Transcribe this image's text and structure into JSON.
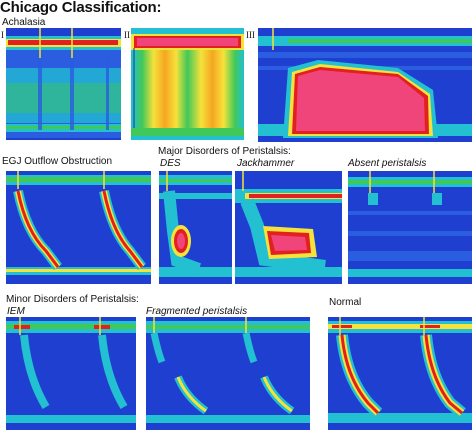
{
  "title": "Chicago Classification:",
  "sections": {
    "achalasia": "Achalasia",
    "egj": "EGJ Outflow Obstruction",
    "major": "Major Disorders of Peristalsis:",
    "minor": "Minor Disorders of Peristalsis:",
    "normal": "Normal"
  },
  "panel_labels": {
    "i": "I",
    "ii": "II",
    "iii": "III",
    "des": "DES",
    "jackhammer": "Jackhammer",
    "absent": "Absent peristalsis",
    "iem": "IEM",
    "fragmented": "Fragmented peristalsis"
  },
  "colors": {
    "background": "#1a2fb5",
    "low": "#2b5de0",
    "mid": "#22c0d0",
    "green": "#41c85a",
    "yellow": "#f5e23a",
    "red": "#e22020",
    "high": "#f0457a"
  }
}
